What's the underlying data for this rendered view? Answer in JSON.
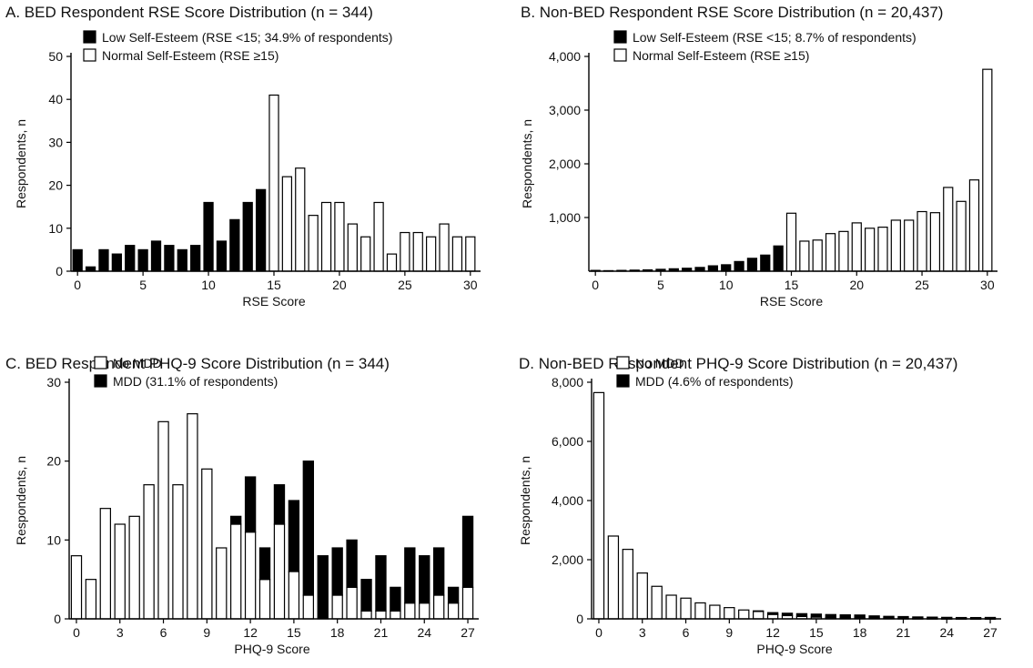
{
  "chart_data": [
    {
      "id": "A",
      "type": "bar",
      "title": "A. BED Respondent RSE Score Distribution (n = 344)",
      "xlabel": "RSE Score",
      "ylabel": "Respondents, n",
      "xlim": [
        0,
        30
      ],
      "ylim": [
        0,
        50
      ],
      "xticks": [
        "0",
        "5",
        "10",
        "15",
        "20",
        "25",
        "30"
      ],
      "xtick_values": [
        0,
        5,
        10,
        15,
        20,
        25,
        30
      ],
      "yticks": [
        "0",
        "10",
        "20",
        "30",
        "40",
        "50"
      ],
      "ytick_values": [
        0,
        10,
        20,
        30,
        40,
        50
      ],
      "legend_position": "top-left",
      "legend": [
        {
          "label": "Low Self-Esteem (RSE <15; 34.9% of respondents)",
          "color": "#000000"
        },
        {
          "label": "Normal Self-Esteem (RSE ≥15)",
          "color": "#ffffff"
        }
      ],
      "x": [
        0,
        1,
        2,
        3,
        4,
        5,
        6,
        7,
        8,
        9,
        10,
        11,
        12,
        13,
        14,
        15,
        16,
        17,
        18,
        19,
        20,
        21,
        22,
        23,
        24,
        25,
        26,
        27,
        28,
        29,
        30
      ],
      "series": [
        {
          "label": "Low Self-Esteem (RSE <15; 34.9% of respondents)",
          "color": "#000000",
          "values": [
            5,
            1,
            5,
            4,
            6,
            5,
            7,
            6,
            5,
            6,
            16,
            7,
            12,
            16,
            19,
            0,
            0,
            0,
            0,
            0,
            0,
            0,
            0,
            0,
            0,
            0,
            0,
            0,
            0,
            0,
            0
          ]
        },
        {
          "label": "Normal Self-Esteem (RSE ≥15)",
          "color": "#ffffff",
          "values": [
            0,
            0,
            0,
            0,
            0,
            0,
            0,
            0,
            0,
            0,
            0,
            0,
            0,
            0,
            0,
            41,
            22,
            24,
            13,
            16,
            16,
            11,
            8,
            16,
            4,
            9,
            9,
            8,
            11,
            8,
            8
          ]
        }
      ]
    },
    {
      "id": "B",
      "type": "bar",
      "title": "B. Non-BED Respondent RSE Score Distribution (n = 20,437)",
      "xlabel": "RSE Score",
      "ylabel": "Respondents, n",
      "xlim": [
        0,
        30
      ],
      "ylim": [
        0,
        4000
      ],
      "xticks": [
        "0",
        "5",
        "10",
        "15",
        "20",
        "25",
        "30"
      ],
      "xtick_values": [
        0,
        5,
        10,
        15,
        20,
        25,
        30
      ],
      "yticks": [
        "1,000",
        "2,000",
        "3,000",
        "4,000"
      ],
      "ytick_values": [
        1000,
        2000,
        3000,
        4000
      ],
      "legend_position": "top-left",
      "legend": [
        {
          "label": "Low Self-Esteem (RSE <15; 8.7% of respondents)",
          "color": "#000000"
        },
        {
          "label": "Normal Self-Esteem (RSE ≥15)",
          "color": "#ffffff"
        }
      ],
      "x": [
        0,
        1,
        2,
        3,
        4,
        5,
        6,
        7,
        8,
        9,
        10,
        11,
        12,
        13,
        14,
        15,
        16,
        17,
        18,
        19,
        20,
        21,
        22,
        23,
        24,
        25,
        26,
        27,
        28,
        29,
        30
      ],
      "series": [
        {
          "label": "Low Self-Esteem (RSE <15; 8.7% of respondents)",
          "color": "#000000",
          "values": [
            15,
            10,
            15,
            20,
            25,
            35,
            45,
            55,
            70,
            100,
            120,
            180,
            240,
            300,
            470,
            0,
            0,
            0,
            0,
            0,
            0,
            0,
            0,
            0,
            0,
            0,
            0,
            0,
            0,
            0,
            0
          ]
        },
        {
          "label": "Normal Self-Esteem (RSE ≥15)",
          "color": "#ffffff",
          "values": [
            0,
            0,
            0,
            0,
            0,
            0,
            0,
            0,
            0,
            0,
            0,
            0,
            0,
            0,
            0,
            1080,
            560,
            580,
            700,
            740,
            900,
            800,
            820,
            950,
            950,
            1110,
            1090,
            1560,
            1300,
            1700,
            3760
          ]
        }
      ]
    },
    {
      "id": "C",
      "type": "bar",
      "stacked": true,
      "title": "C. BED Respondent PHQ-9 Score Distribution (n = 344)",
      "xlabel": "PHQ-9 Score",
      "ylabel": "Respondents, n",
      "xlim": [
        0,
        27
      ],
      "ylim": [
        0,
        30
      ],
      "xticks": [
        "0",
        "3",
        "6",
        "9",
        "12",
        "15",
        "18",
        "21",
        "24",
        "27"
      ],
      "xtick_values": [
        0,
        3,
        6,
        9,
        12,
        15,
        18,
        21,
        24,
        27
      ],
      "yticks": [
        "0",
        "10",
        "20",
        "30"
      ],
      "ytick_values": [
        0,
        10,
        20,
        30
      ],
      "legend_position": "top-left",
      "legend": [
        {
          "label": "No MDD",
          "color": "#ffffff"
        },
        {
          "label": "MDD (31.1% of respondents)",
          "color": "#000000"
        }
      ],
      "x": [
        0,
        1,
        2,
        3,
        4,
        5,
        6,
        7,
        8,
        9,
        10,
        11,
        12,
        13,
        14,
        15,
        16,
        17,
        18,
        19,
        20,
        21,
        22,
        23,
        24,
        25,
        26,
        27
      ],
      "series": [
        {
          "label": "No MDD",
          "color": "#ffffff",
          "values": [
            8,
            5,
            14,
            12,
            13,
            17,
            25,
            17,
            26,
            19,
            9,
            12,
            11,
            5,
            12,
            6,
            3,
            0,
            3,
            4,
            1,
            1,
            1,
            2,
            2,
            3,
            2,
            4
          ]
        },
        {
          "label": "MDD (31.1% of respondents)",
          "color": "#000000",
          "values": [
            0,
            0,
            0,
            0,
            0,
            0,
            0,
            0,
            0,
            0,
            0,
            1,
            7,
            4,
            5,
            9,
            17,
            8,
            6,
            6,
            4,
            7,
            3,
            7,
            6,
            6,
            2,
            9
          ]
        }
      ]
    },
    {
      "id": "D",
      "type": "bar",
      "stacked": true,
      "title": "D. Non-BED Respondent PHQ-9 Score Distribution (n = 20,437)",
      "xlabel": "PHQ-9 Score",
      "ylabel": "Respondents, n",
      "xlim": [
        0,
        27
      ],
      "ylim": [
        0,
        8000
      ],
      "xticks": [
        "0",
        "3",
        "6",
        "9",
        "12",
        "15",
        "18",
        "21",
        "24",
        "27"
      ],
      "xtick_values": [
        0,
        3,
        6,
        9,
        12,
        15,
        18,
        21,
        24,
        27
      ],
      "yticks": [
        "0",
        "2,000",
        "4,000",
        "6,000",
        "8,000"
      ],
      "ytick_values": [
        0,
        2000,
        4000,
        6000,
        8000
      ],
      "legend_position": "top-left",
      "legend": [
        {
          "label": "No MDD",
          "color": "#ffffff"
        },
        {
          "label": "MDD (4.6% of respondents)",
          "color": "#000000"
        }
      ],
      "x": [
        0,
        1,
        2,
        3,
        4,
        5,
        6,
        7,
        8,
        9,
        10,
        11,
        12,
        13,
        14,
        15,
        16,
        17,
        18,
        19,
        20,
        21,
        22,
        23,
        24,
        25,
        26,
        27
      ],
      "series": [
        {
          "label": "No MDD",
          "color": "#ffffff",
          "values": [
            7650,
            2800,
            2350,
            1550,
            1100,
            800,
            700,
            540,
            460,
            380,
            300,
            250,
            150,
            110,
            80,
            60,
            40,
            35,
            30,
            20,
            15,
            12,
            10,
            8,
            6,
            5,
            4,
            3
          ]
        },
        {
          "label": "MDD (4.6% of respondents)",
          "color": "#000000",
          "values": [
            0,
            0,
            0,
            0,
            0,
            0,
            0,
            0,
            0,
            0,
            0,
            20,
            60,
            80,
            95,
            100,
            105,
            100,
            100,
            80,
            70,
            65,
            55,
            50,
            45,
            40,
            40,
            45
          ]
        }
      ]
    }
  ]
}
